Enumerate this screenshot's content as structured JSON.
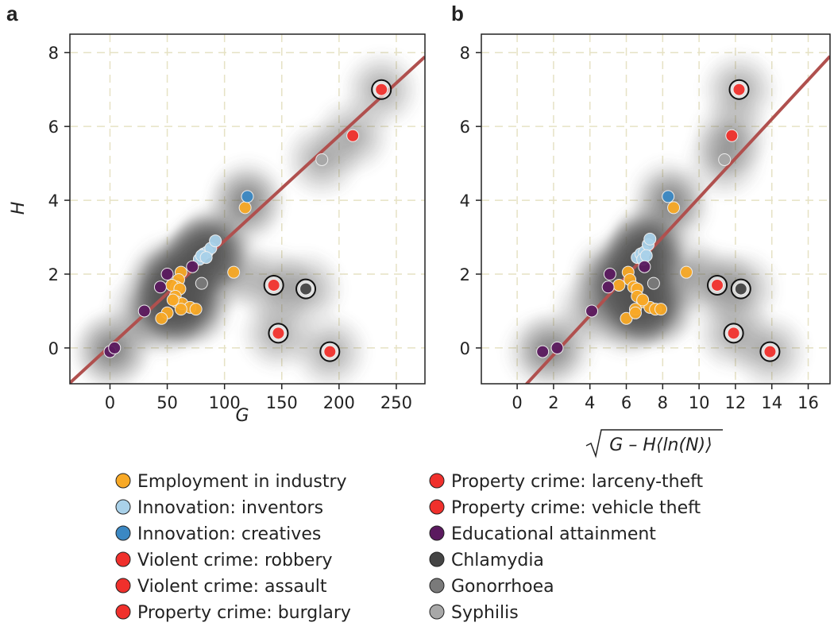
{
  "chart_data": [
    {
      "panel": "a",
      "type": "scatter",
      "xlabel": "G",
      "ylabel": "H",
      "xlim": [
        -35,
        275
      ],
      "ylim": [
        -0.97,
        8.5
      ],
      "xticks": [
        0,
        50,
        100,
        150,
        200,
        250
      ],
      "yticks": [
        0,
        2,
        4,
        6,
        8
      ],
      "grid": true,
      "fit_line": {
        "slope": 0.0285,
        "intercept": 0.05
      },
      "series": [
        {
          "name": "Employment in industry",
          "color": "#f8a926",
          "points": [
            [
              118,
              3.8
            ],
            [
              108,
              2.05
            ],
            [
              62,
              2.05
            ],
            [
              60,
              1.85
            ],
            [
              58,
              1.65
            ],
            [
              54,
              1.7
            ],
            [
              61,
              1.6
            ],
            [
              57,
              1.4
            ],
            [
              58,
              1.25
            ],
            [
              63,
              1.2
            ],
            [
              70,
              1.1
            ],
            [
              75,
              1.05
            ],
            [
              62,
              1.05
            ],
            [
              50,
              0.95
            ],
            [
              45,
              0.8
            ],
            [
              55,
              1.3
            ]
          ]
        },
        {
          "name": "Innovation: inventors",
          "color": "#a9d1e9",
          "points": [
            [
              78,
              2.4
            ],
            [
              82,
              2.55
            ],
            [
              85,
              2.6
            ],
            [
              88,
              2.7
            ],
            [
              92,
              2.9
            ],
            [
              80,
              2.5
            ],
            [
              84,
              2.45
            ]
          ]
        },
        {
          "name": "Innovation: creatives",
          "color": "#3b88c3",
          "points": [
            [
              120,
              4.1
            ]
          ]
        },
        {
          "name": "Violent crime: robbery",
          "color": "#f0302c",
          "points": [
            [
              143,
              1.7
            ]
          ],
          "circled": true
        },
        {
          "name": "Violent crime: assault",
          "color": "#f0302c",
          "points": [
            [
              147,
              0.4
            ]
          ],
          "circled": true
        },
        {
          "name": "Property crime: burglary",
          "color": "#f0302c",
          "points": [
            [
              237,
              7.0
            ]
          ],
          "circled": true
        },
        {
          "name": "Property crime: larceny-theft",
          "color": "#f0302c",
          "points": [
            [
              212,
              5.75
            ]
          ]
        },
        {
          "name": "Property crime: vehicle theft",
          "color": "#f0302c",
          "points": [
            [
              192,
              -0.1
            ]
          ],
          "circled": true
        },
        {
          "name": "Educational attainment",
          "color": "#5b1a5f",
          "points": [
            [
              0,
              -0.1
            ],
            [
              4,
              0
            ],
            [
              30,
              1.0
            ],
            [
              44,
              1.65
            ],
            [
              50,
              2.0
            ],
            [
              72,
              2.2
            ]
          ]
        },
        {
          "name": "Chlamydia",
          "color": "#454545",
          "points": [
            [
              171,
              1.6
            ]
          ],
          "circled": true
        },
        {
          "name": "Gonorrhoea",
          "color": "#7a7a7a",
          "points": [
            [
              80,
              1.75
            ]
          ]
        },
        {
          "name": "Syphilis",
          "color": "#a8a8a8",
          "points": [
            [
              185,
              5.1
            ]
          ]
        }
      ]
    },
    {
      "panel": "b",
      "type": "scatter",
      "xlabel": "G – H⟨ln(N)⟩",
      "ylabel": "",
      "xlim": [
        -1.97,
        17.2
      ],
      "ylim": [
        -0.97,
        8.5
      ],
      "xticks": [
        0,
        2,
        4,
        6,
        8,
        10,
        12,
        14,
        16
      ],
      "yticks": [
        0,
        2,
        4,
        6,
        8
      ],
      "grid": true,
      "fit_line": {
        "slope": 0.532,
        "intercept": -1.25
      },
      "series": [
        {
          "name": "Employment in industry",
          "color": "#f8a926",
          "points": [
            [
              8.6,
              3.8
            ],
            [
              9.3,
              2.05
            ],
            [
              6.1,
              2.05
            ],
            [
              6.2,
              1.85
            ],
            [
              6.4,
              1.65
            ],
            [
              5.6,
              1.7
            ],
            [
              6.6,
              1.6
            ],
            [
              6.6,
              1.4
            ],
            [
              6.9,
              1.25
            ],
            [
              7.3,
              1.1
            ],
            [
              7.6,
              1.05
            ],
            [
              7.9,
              1.05
            ],
            [
              6.5,
              1.05
            ],
            [
              6.0,
              0.8
            ],
            [
              6.5,
              0.95
            ],
            [
              6.9,
              1.3
            ]
          ]
        },
        {
          "name": "Innovation: inventors",
          "color": "#a9d1e9",
          "points": [
            [
              6.6,
              2.45
            ],
            [
              6.8,
              2.55
            ],
            [
              7.0,
              2.6
            ],
            [
              7.2,
              2.8
            ],
            [
              7.3,
              2.95
            ],
            [
              6.9,
              2.4
            ],
            [
              7.1,
              2.5
            ]
          ]
        },
        {
          "name": "Innovation: creatives",
          "color": "#3b88c3",
          "points": [
            [
              8.3,
              4.1
            ]
          ]
        },
        {
          "name": "Violent crime: robbery",
          "color": "#f0302c",
          "points": [
            [
              11.0,
              1.7
            ]
          ],
          "circled": true
        },
        {
          "name": "Violent crime: assault",
          "color": "#f0302c",
          "points": [
            [
              11.9,
              0.4
            ]
          ],
          "circled": true
        },
        {
          "name": "Property crime: burglary",
          "color": "#f0302c",
          "points": [
            [
              12.2,
              7.0
            ]
          ],
          "circled": true
        },
        {
          "name": "Property crime: larceny-theft",
          "color": "#f0302c",
          "points": [
            [
              11.8,
              5.75
            ]
          ]
        },
        {
          "name": "Property crime: vehicle theft",
          "color": "#f0302c",
          "points": [
            [
              13.9,
              -0.1
            ]
          ],
          "circled": true
        },
        {
          "name": "Educational attainment",
          "color": "#5b1a5f",
          "points": [
            [
              1.4,
              -0.1
            ],
            [
              2.2,
              0
            ],
            [
              4.1,
              1.0
            ],
            [
              5.0,
              1.65
            ],
            [
              5.1,
              2.0
            ],
            [
              7.0,
              2.2
            ]
          ]
        },
        {
          "name": "Chlamydia",
          "color": "#454545",
          "points": [
            [
              12.3,
              1.6
            ]
          ],
          "circled": true
        },
        {
          "name": "Gonorrhoea",
          "color": "#7a7a7a",
          "points": [
            [
              7.5,
              1.75
            ]
          ]
        },
        {
          "name": "Syphilis",
          "color": "#a8a8a8",
          "points": [
            [
              11.4,
              5.1
            ]
          ]
        }
      ]
    }
  ],
  "legend": [
    {
      "label": "Employment in industry",
      "color": "#f8a926"
    },
    {
      "label": "Innovation: inventors",
      "color": "#a9d1e9"
    },
    {
      "label": "Innovation: creatives",
      "color": "#3b88c3"
    },
    {
      "label": "Violent crime: robbery",
      "color": "#f0302c"
    },
    {
      "label": "Violent crime: assault",
      "color": "#f0302c"
    },
    {
      "label": "Property crime: burglary",
      "color": "#f0302c"
    },
    {
      "label": "Property crime: larceny-theft",
      "color": "#f0302c"
    },
    {
      "label": "Property crime: vehicle theft",
      "color": "#f0302c"
    },
    {
      "label": "Educational attainment",
      "color": "#5b1a5f"
    },
    {
      "label": "Chlamydia",
      "color": "#454545"
    },
    {
      "label": "Gonorrhoea",
      "color": "#7a7a7a"
    },
    {
      "label": "Syphilis",
      "color": "#a8a8a8"
    }
  ]
}
